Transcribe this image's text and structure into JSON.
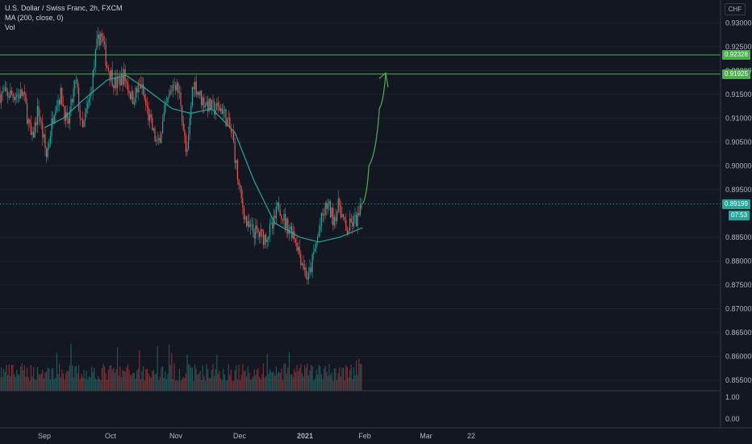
{
  "legend": {
    "title": "U.S. Dollar / Swiss Franc, 2h, FXCM",
    "ma": "MA (200, close, 0)",
    "vol": "Vol"
  },
  "currency_unit": "CHF",
  "price_tags": {
    "resistance_upper": "0.92328",
    "resistance_lower": "0.91925",
    "last_price": "0.89199",
    "countdown": "07:53"
  },
  "colors": {
    "background": "#131722",
    "up": "#26a69a",
    "down": "#ef5350",
    "ma": "#26a69a",
    "level_line": "#4caf50",
    "projection": "#4caf50",
    "grid": "#1e222d"
  },
  "chart_data": {
    "type": "candlestick",
    "price_axis": {
      "ticks": [
        "0.93000",
        "0.92500",
        "0.92000",
        "0.91500",
        "0.91000",
        "0.90500",
        "0.90000",
        "0.89500",
        "0.88500",
        "0.88000",
        "0.87500",
        "0.87000",
        "0.86500",
        "0.86000",
        "0.85500"
      ],
      "range": [
        0.8528,
        0.9348
      ]
    },
    "volume_axis": {
      "ticks": [
        "1.00",
        "0.00"
      ]
    },
    "time_axis": [
      "Sep",
      "Oct",
      "Nov",
      "Dec",
      "2021",
      "Feb",
      "Mar",
      "22"
    ],
    "horizontal_levels": [
      0.92328,
      0.91925
    ],
    "last_price": 0.89199,
    "price_path": [
      [
        "2020-08-22",
        0.915
      ],
      [
        "2020-08-26",
        0.905
      ],
      [
        "2020-08-29",
        0.912
      ],
      [
        "2020-09-02",
        0.902
      ],
      [
        "2020-09-06",
        0.913
      ],
      [
        "2020-09-09",
        0.915
      ],
      [
        "2020-09-12",
        0.908
      ],
      [
        "2020-09-16",
        0.918
      ],
      [
        "2020-09-19",
        0.907
      ],
      [
        "2020-09-23",
        0.915
      ],
      [
        "2020-09-26",
        0.925
      ],
      [
        "2020-09-28",
        0.928
      ],
      [
        "2020-10-01",
        0.921
      ],
      [
        "2020-10-05",
        0.917
      ],
      [
        "2020-10-09",
        0.919
      ],
      [
        "2020-10-13",
        0.914
      ],
      [
        "2020-10-17",
        0.917
      ],
      [
        "2020-10-21",
        0.91
      ],
      [
        "2020-10-25",
        0.904
      ],
      [
        "2020-10-29",
        0.912
      ],
      [
        "2020-11-02",
        0.918
      ],
      [
        "2020-11-05",
        0.914
      ],
      [
        "2020-11-08",
        0.901
      ],
      [
        "2020-11-11",
        0.918
      ],
      [
        "2020-11-15",
        0.914
      ],
      [
        "2020-11-20",
        0.912
      ],
      [
        "2020-11-25",
        0.912
      ],
      [
        "2020-11-30",
        0.906
      ],
      [
        "2020-12-03",
        0.895
      ],
      [
        "2020-12-07",
        0.887
      ],
      [
        "2020-12-11",
        0.886
      ],
      [
        "2020-12-15",
        0.885
      ],
      [
        "2020-12-19",
        0.887
      ],
      [
        "2020-12-22",
        0.892
      ],
      [
        "2020-12-25",
        0.888
      ],
      [
        "2020-12-29",
        0.886
      ],
      [
        "2021-01-02",
        0.88
      ],
      [
        "2021-01-05",
        0.876
      ],
      [
        "2021-01-08",
        0.882
      ],
      [
        "2021-01-11",
        0.888
      ],
      [
        "2021-01-14",
        0.892
      ],
      [
        "2021-01-17",
        0.889
      ],
      [
        "2021-01-20",
        0.892
      ],
      [
        "2021-01-23",
        0.886
      ],
      [
        "2021-01-26",
        0.888
      ],
      [
        "2021-01-29",
        0.889
      ],
      [
        "2021-01-31",
        0.892
      ]
    ],
    "moving_average_200": [
      [
        "2020-09-01",
        0.908
      ],
      [
        "2020-09-10",
        0.91
      ],
      [
        "2020-09-20",
        0.914
      ],
      [
        "2020-10-01",
        0.918
      ],
      [
        "2020-10-10",
        0.919
      ],
      [
        "2020-10-20",
        0.916
      ],
      [
        "2020-11-01",
        0.912
      ],
      [
        "2020-11-10",
        0.911
      ],
      [
        "2020-11-20",
        0.912
      ],
      [
        "2020-12-01",
        0.907
      ],
      [
        "2020-12-10",
        0.897
      ],
      [
        "2020-12-20",
        0.888
      ],
      [
        "2021-01-01",
        0.885
      ],
      [
        "2021-01-10",
        0.884
      ],
      [
        "2021-01-20",
        0.885
      ],
      [
        "2021-01-31",
        0.887
      ]
    ],
    "projection_path": [
      [
        "2021-01-31",
        0.892
      ],
      [
        "2021-02-03",
        0.9
      ],
      [
        "2021-02-08",
        0.912
      ],
      [
        "2021-02-11",
        0.9195
      ]
    ]
  }
}
